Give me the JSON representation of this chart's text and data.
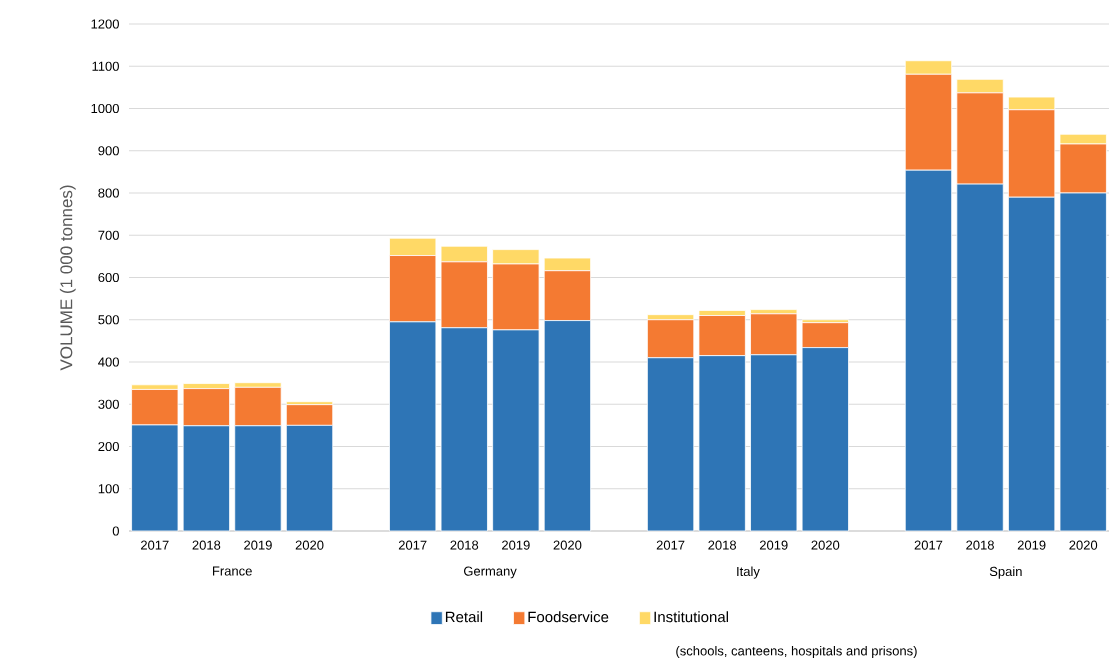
{
  "chart_data": {
    "type": "bar",
    "stacked": true,
    "ylabel": "VOLUME (1 000 tonnes)",
    "categories": [
      "2017",
      "2018",
      "2019",
      "2020",
      null,
      "2017",
      "2018",
      "2019",
      "2020",
      null,
      "2017",
      "2018",
      "2019",
      "2020",
      null,
      "2017",
      "2018",
      "2019",
      "2020"
    ],
    "series": [
      {
        "name": "Retail",
        "color": "#2e75b6",
        "values": [
          251,
          249,
          249,
          250,
          null,
          495,
          481,
          476,
          498,
          null,
          410,
          415,
          417,
          434,
          null,
          854,
          821,
          790,
          800
        ]
      },
      {
        "name": "Foodservice",
        "color": "#f47a32",
        "values": [
          84,
          88,
          91,
          49,
          null,
          157,
          156,
          156,
          118,
          null,
          90,
          95,
          97,
          59,
          null,
          227,
          216,
          207,
          116
        ]
      },
      {
        "name": "Institutional",
        "color": "#ffd966",
        "values": [
          11,
          12,
          11,
          7,
          null,
          41,
          37,
          34,
          30,
          null,
          12,
          12,
          10,
          7,
          null,
          32,
          32,
          30,
          23
        ]
      }
    ],
    "annotations": [
      "France",
      "Germany",
      "Italy",
      "Spain",
      "(schools, canteens, hospitals and prisons)"
    ],
    "ylim": [
      0,
      1200
    ],
    "yticks": [
      0,
      100,
      200,
      300,
      400,
      500,
      600,
      700,
      800,
      900,
      1000,
      1100,
      1200
    ],
    "grid": "y",
    "legend": "bottom"
  }
}
